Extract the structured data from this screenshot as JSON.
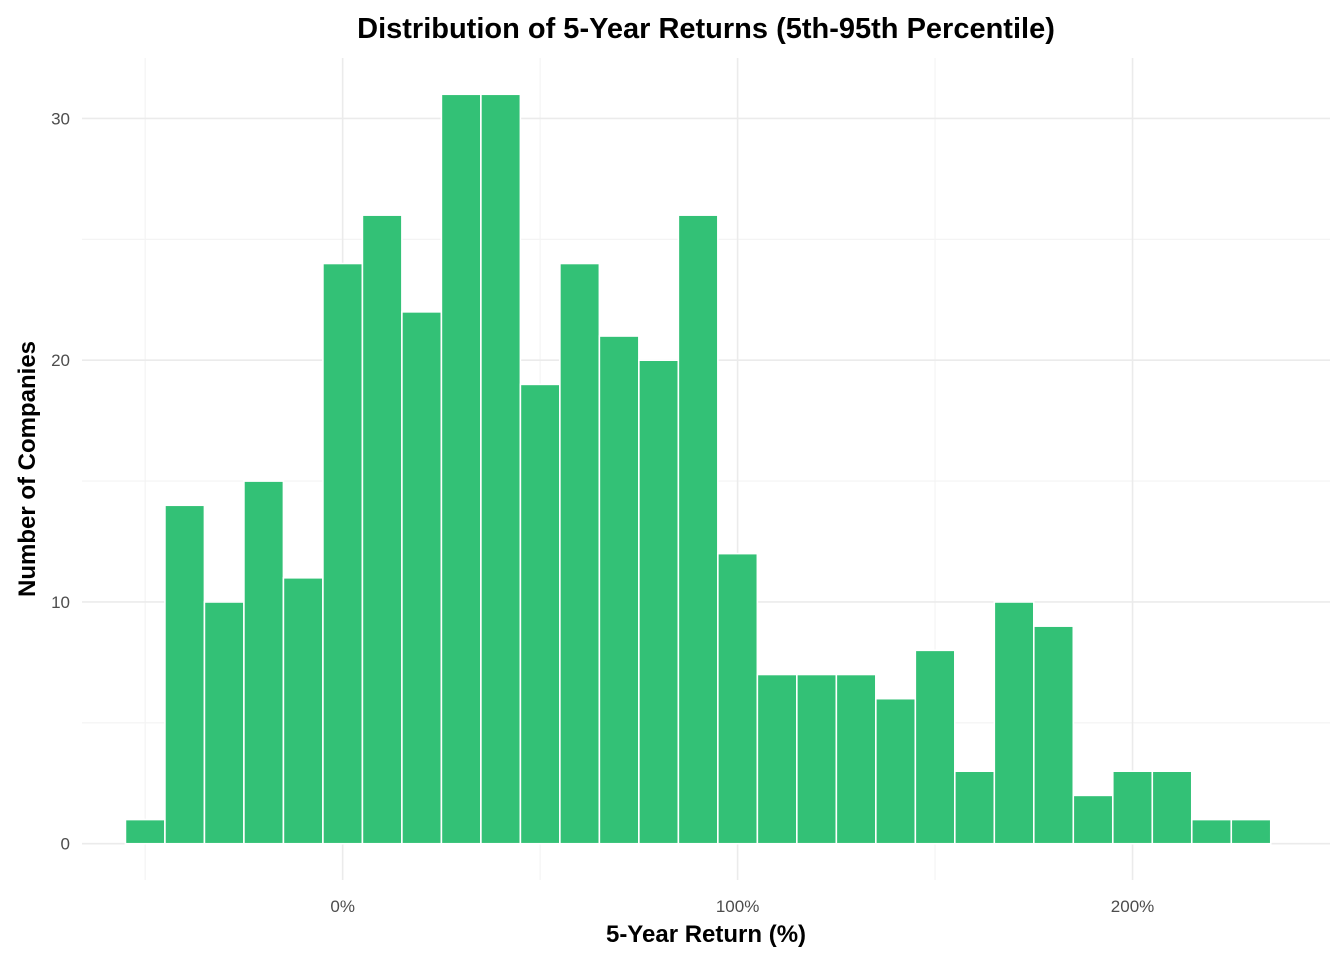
{
  "chart_data": {
    "type": "bar",
    "title": "Distribution of 5-Year Returns (5th-95th Percentile)",
    "xlabel": "5-Year Return (%)",
    "ylabel": "Number of Companies",
    "bin_width": 10,
    "bins": [
      {
        "x0": -55,
        "x1": -45,
        "count": 1
      },
      {
        "x0": -45,
        "x1": -35,
        "count": 14
      },
      {
        "x0": -35,
        "x1": -25,
        "count": 10
      },
      {
        "x0": -25,
        "x1": -15,
        "count": 15
      },
      {
        "x0": -15,
        "x1": -5,
        "count": 11
      },
      {
        "x0": -5,
        "x1": 5,
        "count": 24
      },
      {
        "x0": 5,
        "x1": 15,
        "count": 26
      },
      {
        "x0": 15,
        "x1": 25,
        "count": 22
      },
      {
        "x0": 25,
        "x1": 35,
        "count": 31
      },
      {
        "x0": 35,
        "x1": 45,
        "count": 31
      },
      {
        "x0": 45,
        "x1": 55,
        "count": 19
      },
      {
        "x0": 55,
        "x1": 65,
        "count": 24
      },
      {
        "x0": 65,
        "x1": 75,
        "count": 21
      },
      {
        "x0": 75,
        "x1": 85,
        "count": 20
      },
      {
        "x0": 85,
        "x1": 95,
        "count": 26
      },
      {
        "x0": 95,
        "x1": 105,
        "count": 12
      },
      {
        "x0": 105,
        "x1": 115,
        "count": 7
      },
      {
        "x0": 115,
        "x1": 125,
        "count": 7
      },
      {
        "x0": 125,
        "x1": 135,
        "count": 7
      },
      {
        "x0": 135,
        "x1": 145,
        "count": 6
      },
      {
        "x0": 145,
        "x1": 155,
        "count": 8
      },
      {
        "x0": 155,
        "x1": 165,
        "count": 3
      },
      {
        "x0": 165,
        "x1": 175,
        "count": 10
      },
      {
        "x0": 175,
        "x1": 185,
        "count": 9
      },
      {
        "x0": 185,
        "x1": 195,
        "count": 2
      },
      {
        "x0": 195,
        "x1": 205,
        "count": 3
      },
      {
        "x0": 205,
        "x1": 215,
        "count": 3
      },
      {
        "x0": 215,
        "x1": 225,
        "count": 1
      },
      {
        "x0": 225,
        "x1": 235,
        "count": 1
      }
    ],
    "xlim": [
      -66,
      250
    ],
    "ylim": [
      -1.5,
      32.5
    ],
    "x_ticks": [
      {
        "value": 0,
        "label": "0%"
      },
      {
        "value": 100,
        "label": "100%"
      },
      {
        "value": 200,
        "label": "200%"
      }
    ],
    "y_ticks": [
      {
        "value": 0,
        "label": "0"
      },
      {
        "value": 10,
        "label": "10"
      },
      {
        "value": 20,
        "label": "20"
      },
      {
        "value": 30,
        "label": "30"
      }
    ],
    "x_minor_ticks": [
      -50,
      50,
      150
    ],
    "y_minor_ticks": [
      5,
      15,
      25
    ],
    "grid": true,
    "bar_color": "#33c176",
    "bar_edge_color": "#ffffff",
    "background_color": "#ffffff"
  }
}
